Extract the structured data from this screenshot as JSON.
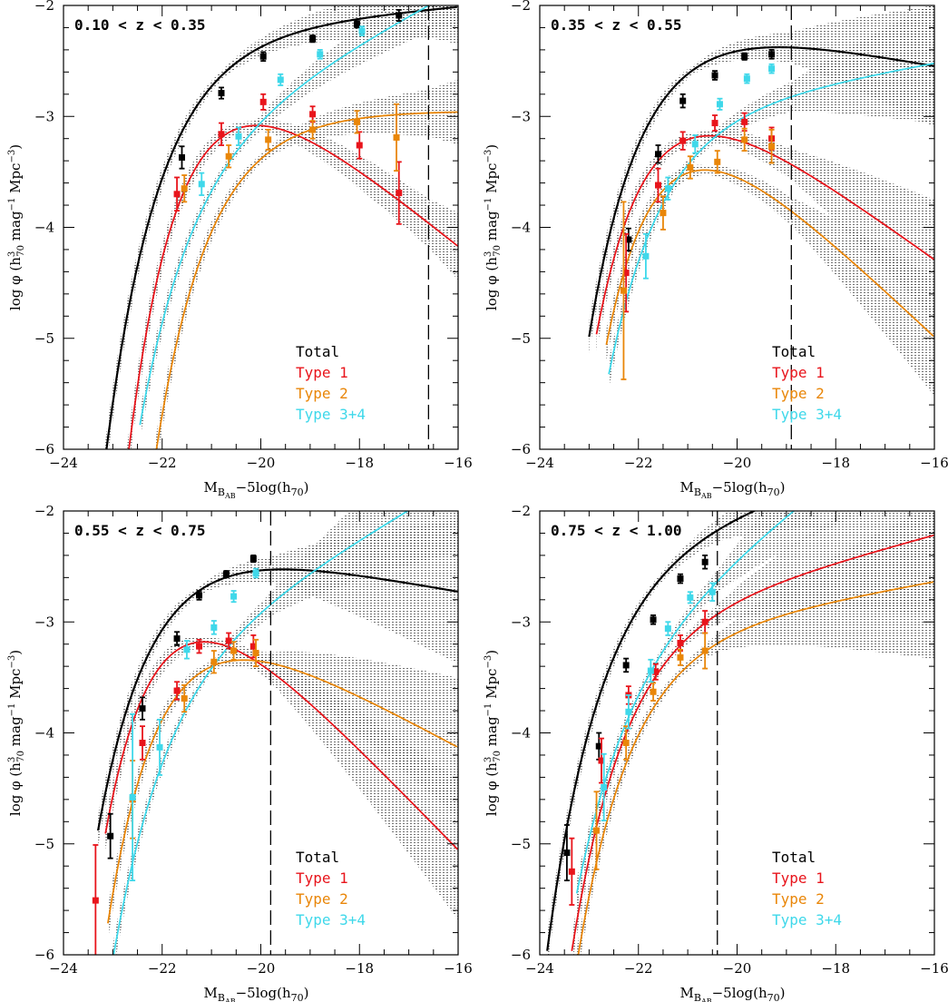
{
  "colors": {
    "Total": "#000000",
    "Type 1": "#e8141b",
    "Type 2": "#e98608",
    "Type 3+4": "#3fd8ea",
    "band": "#555555",
    "frame": "#000000"
  },
  "chart_data": {
    "type": "scatter",
    "layout": "2x2 grid of panels sharing axis labels",
    "xlabel": "M_{B_AB} -5log(h_70)",
    "ylabel": "log φ   (h³_70 mag⁻¹ Mpc⁻³)",
    "xlim": [
      -24,
      -16
    ],
    "ylim": [
      -6,
      -2
    ],
    "x_major_ticks": [
      -24,
      -22,
      -20,
      -18,
      -16
    ],
    "y_major_ticks": [
      -6,
      -5,
      -4,
      -3,
      -2
    ],
    "grid": false,
    "legend_placement": "bottom-right inside each panel",
    "legend": [
      "Total",
      "Type 1",
      "Type 2",
      "Type 3+4"
    ],
    "curve_style": "Schechter function fits with dotted uncertainty band",
    "panels": [
      {
        "title": "0.10 < z < 0.35",
        "completeness_limit_x": -16.6,
        "series": [
          {
            "name": "Total",
            "fit": {
              "mstar": -20.8,
              "alpha": -1.1,
              "logphi": -2.2,
              "start": -23.4,
              "end": -16.0
            },
            "points": [
              [
                -21.6,
                -3.37,
                0.1
              ],
              [
                -20.8,
                -2.79,
                0.05
              ],
              [
                -19.95,
                -2.46,
                0.04
              ],
              [
                -18.95,
                -2.3,
                0.03
              ],
              [
                -18.05,
                -2.17,
                0.03
              ],
              [
                -17.2,
                -2.09,
                0.05
              ]
            ]
          },
          {
            "name": "Type 1",
            "fit": {
              "mstar": -20.2,
              "alpha": -0.1,
              "logphi": -2.65,
              "start": -22.85,
              "end": -16.0
            },
            "points": [
              [
                -21.7,
                -3.7,
                0.15
              ],
              [
                -20.8,
                -3.16,
                0.1
              ],
              [
                -19.95,
                -2.87,
                0.07
              ],
              [
                -18.95,
                -2.98,
                0.07
              ],
              [
                -18.0,
                -3.26,
                0.12
              ],
              [
                -17.2,
                -3.69,
                0.28
              ]
            ]
          },
          {
            "name": "Type 2",
            "fit": {
              "mstar": -20.0,
              "alpha": -1.0,
              "logphi": -2.95,
              "start": -23.2,
              "end": -16.0
            },
            "points": [
              [
                -21.55,
                -3.65,
                0.12
              ],
              [
                -20.65,
                -3.36,
                0.1
              ],
              [
                -19.85,
                -3.21,
                0.09
              ],
              [
                -18.95,
                -3.12,
                0.08
              ],
              [
                -18.05,
                -3.05,
                0.1
              ],
              [
                -17.25,
                -3.19,
                0.3
              ]
            ]
          },
          {
            "name": "Type 3+4",
            "fit": {
              "mstar": -20.6,
              "alpha": -1.6,
              "logphi": -2.95,
              "start": -22.45,
              "end": -16.0
            },
            "points": [
              [
                -21.2,
                -3.61,
                0.1
              ],
              [
                -20.45,
                -3.18,
                0.08
              ],
              [
                -19.6,
                -2.67,
                0.05
              ],
              [
                -18.8,
                -2.44,
                0.04
              ],
              [
                -17.95,
                -2.23,
                0.04
              ]
            ]
          }
        ]
      },
      {
        "title": "0.35 < z < 0.55",
        "completeness_limit_x": -18.9,
        "series": [
          {
            "name": "Total",
            "fit": {
              "mstar": -20.9,
              "alpha": -0.8,
              "logphi": -2.15,
              "start": -23.0,
              "end": -16.0
            },
            "points": [
              [
                -22.2,
                -4.11,
                0.1
              ],
              [
                -21.6,
                -3.34,
                0.08
              ],
              [
                -21.1,
                -2.86,
                0.06
              ],
              [
                -20.45,
                -2.63,
                0.04
              ],
              [
                -19.85,
                -2.46,
                0.03
              ],
              [
                -19.3,
                -2.44,
                0.04
              ]
            ]
          },
          {
            "name": "Type 1",
            "fit": {
              "mstar": -20.8,
              "alpha": -0.2,
              "logphi": -2.75,
              "start": -22.85,
              "end": -16.0
            },
            "points": [
              [
                -22.25,
                -4.41,
                0.35
              ],
              [
                -21.6,
                -3.62,
                0.15
              ],
              [
                -21.1,
                -3.22,
                0.08
              ],
              [
                -20.45,
                -3.06,
                0.07
              ],
              [
                -19.85,
                -3.05,
                0.08
              ],
              [
                -19.3,
                -3.2,
                0.1
              ]
            ]
          },
          {
            "name": "Type 2",
            "fit": {
              "mstar": -20.6,
              "alpha": 0.05,
              "logphi": -3.05,
              "start": -22.65,
              "end": -16.0
            },
            "points": [
              [
                -22.3,
                -4.57,
                0.8
              ],
              [
                -21.5,
                -3.87,
                0.15
              ],
              [
                -20.95,
                -3.46,
                0.1
              ],
              [
                -20.4,
                -3.41,
                0.1
              ],
              [
                -19.85,
                -3.21,
                0.1
              ],
              [
                -19.3,
                -3.27,
                0.15
              ]
            ]
          },
          {
            "name": "Type 3+4",
            "fit": {
              "mstar": -20.8,
              "alpha": -1.2,
              "logphi": -2.9,
              "start": -22.6,
              "end": -16.0
            },
            "points": [
              [
                -21.85,
                -4.26,
                0.2
              ],
              [
                -21.4,
                -3.65,
                0.1
              ],
              [
                -20.85,
                -3.25,
                0.08
              ],
              [
                -20.35,
                -2.89,
                0.05
              ],
              [
                -19.8,
                -2.66,
                0.04
              ],
              [
                -19.3,
                -2.57,
                0.04
              ]
            ]
          }
        ]
      },
      {
        "title": "0.55 < z < 0.75",
        "completeness_limit_x": -19.8,
        "series": [
          {
            "name": "Total",
            "fit": {
              "mstar": -21.3,
              "alpha": -0.8,
              "logphi": -2.3,
              "start": -23.3,
              "end": -16.0
            },
            "points": [
              [
                -23.05,
                -4.93,
                0.2
              ],
              [
                -22.4,
                -3.78,
                0.1
              ],
              [
                -21.7,
                -3.15,
                0.06
              ],
              [
                -21.25,
                -2.76,
                0.04
              ],
              [
                -20.7,
                -2.57,
                0.03
              ],
              [
                -20.15,
                -2.43,
                0.03
              ]
            ]
          },
          {
            "name": "Type 1",
            "fit": {
              "mstar": -21.0,
              "alpha": 0.15,
              "logphi": -2.75,
              "start": -23.15,
              "end": -16.0
            },
            "points": [
              [
                -23.35,
                -5.51,
                0.5
              ],
              [
                -22.4,
                -4.09,
                0.15
              ],
              [
                -21.7,
                -3.62,
                0.08
              ],
              [
                -21.25,
                -3.22,
                0.06
              ],
              [
                -20.65,
                -3.17,
                0.07
              ],
              [
                -20.15,
                -3.22,
                0.1
              ]
            ]
          },
          {
            "name": "Type 2",
            "fit": {
              "mstar": -20.9,
              "alpha": -0.4,
              "logphi": -2.95,
              "start": -23.1,
              "end": -16.0
            },
            "points": [
              [
                -22.6,
                -4.6,
                0.35
              ],
              [
                -21.55,
                -3.69,
                0.12
              ],
              [
                -20.95,
                -3.36,
                0.1
              ],
              [
                -20.55,
                -3.26,
                0.08
              ],
              [
                -20.1,
                -3.28,
                0.12
              ]
            ]
          },
          {
            "name": "Type 3+4",
            "fit": {
              "mstar": -21.1,
              "alpha": -1.65,
              "logphi": -3.05,
              "start": -23.0,
              "end": -16.0
            },
            "points": [
              [
                -22.6,
                -4.58,
                0.75
              ],
              [
                -22.05,
                -4.13,
                0.25
              ],
              [
                -21.5,
                -3.25,
                0.08
              ],
              [
                -20.95,
                -3.05,
                0.06
              ],
              [
                -20.55,
                -2.77,
                0.05
              ],
              [
                -20.1,
                -2.56,
                0.04
              ]
            ]
          }
        ]
      },
      {
        "title": "0.75 < z < 1.00",
        "completeness_limit_x": -20.4,
        "series": [
          {
            "name": "Total",
            "fit": {
              "mstar": -21.6,
              "alpha": -1.35,
              "logphi": -2.2,
              "start": -23.85,
              "end": -18.35
            },
            "points": [
              [
                -23.45,
                -5.08,
                0.25
              ],
              [
                -22.8,
                -4.12,
                0.12
              ],
              [
                -22.25,
                -3.39,
                0.06
              ],
              [
                -21.7,
                -2.98,
                0.04
              ],
              [
                -21.15,
                -2.61,
                0.04
              ],
              [
                -20.65,
                -2.46,
                0.06
              ]
            ]
          },
          {
            "name": "Type 1",
            "fit": {
              "mstar": -21.3,
              "alpha": -1.3,
              "logphi": -2.85,
              "start": -23.35,
              "end": -16.0
            },
            "points": [
              [
                -23.35,
                -5.25,
                0.3
              ],
              [
                -22.75,
                -4.25,
                0.2
              ],
              [
                -22.2,
                -3.66,
                0.08
              ],
              [
                -21.65,
                -3.45,
                0.07
              ],
              [
                -21.15,
                -3.19,
                0.07
              ],
              [
                -20.65,
                -3.0,
                0.1
              ]
            ]
          },
          {
            "name": "Type 2",
            "fit": {
              "mstar": -21.2,
              "alpha": -1.2,
              "logphi": -3.05,
              "start": -23.4,
              "end": -16.0
            },
            "points": [
              [
                -22.85,
                -4.88,
                0.35
              ],
              [
                -22.25,
                -4.09,
                0.15
              ],
              [
                -21.7,
                -3.63,
                0.08
              ],
              [
                -21.15,
                -3.32,
                0.07
              ],
              [
                -20.65,
                -3.26,
                0.16
              ]
            ]
          },
          {
            "name": "Type 3+4",
            "fit": {
              "mstar": -21.6,
              "alpha": -1.85,
              "logphi": -2.9,
              "start": -23.25,
              "end": -17.65
            },
            "points": [
              [
                -22.7,
                -4.49,
                0.3
              ],
              [
                -22.2,
                -3.81,
                0.15
              ],
              [
                -21.75,
                -3.44,
                0.1
              ],
              [
                -21.4,
                -3.06,
                0.06
              ],
              [
                -20.95,
                -2.78,
                0.05
              ],
              [
                -20.5,
                -2.73,
                0.08
              ]
            ]
          }
        ]
      }
    ]
  }
}
